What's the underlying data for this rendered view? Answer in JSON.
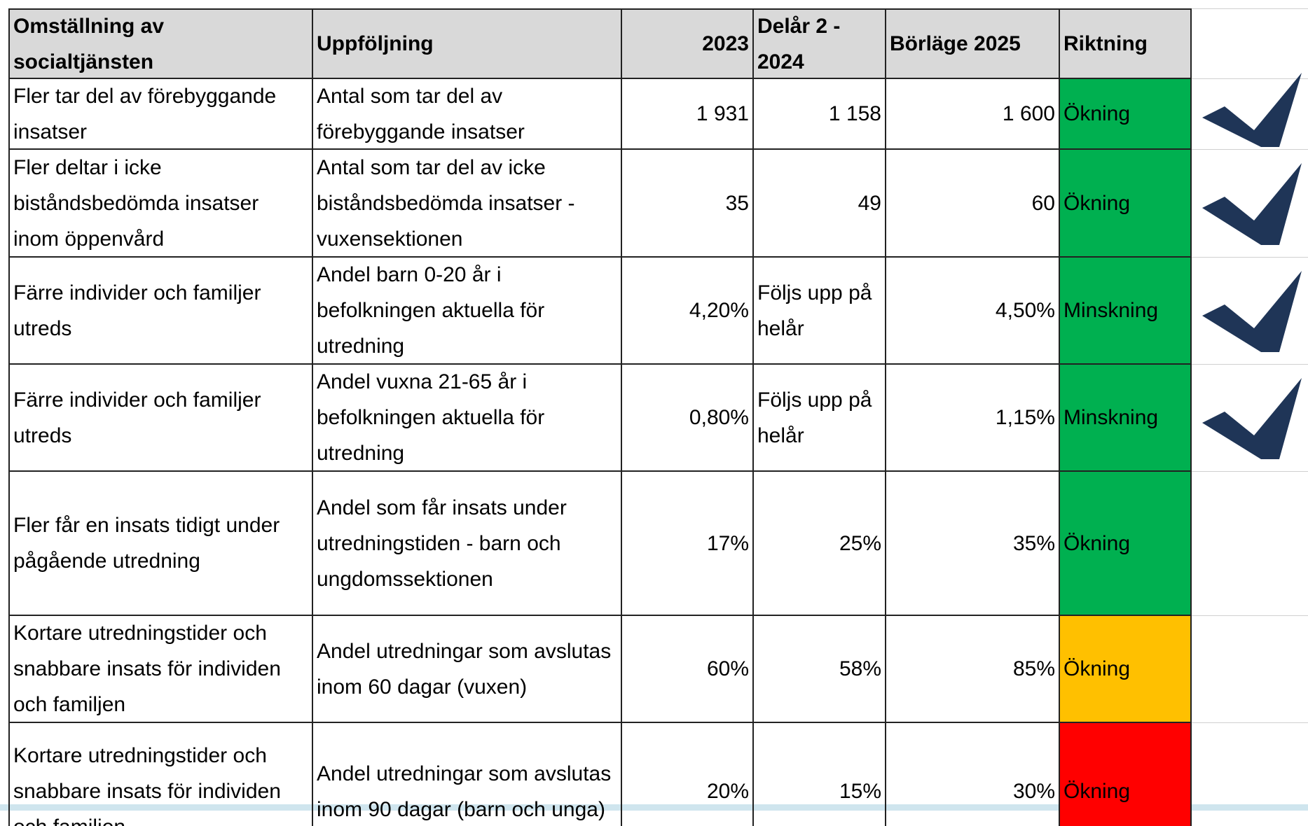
{
  "table": {
    "header": [
      "Omställning av socialtjänsten",
      "Uppföljning",
      "2023",
      "Delår 2 - 2024",
      "Börläge 2025",
      "Riktning"
    ],
    "rows": [
      [
        "Fler tar del av förebyggande insatser",
        "Antal som tar del av förebyggande insatser",
        "1 931",
        "1 158",
        "1 600",
        "Ökning"
      ],
      [
        "Fler deltar i icke biståndsbedömda insatser inom öppenvård",
        "Antal som tar del av icke biståndsbedömda insatser - vuxensektionen",
        "35",
        "49",
        "60",
        "Ökning"
      ],
      [
        "Färre individer och familjer utreds",
        "Andel barn 0-20 år i befolkningen aktuella för utredning",
        "4,20%",
        "Följs upp på helår",
        "4,50%",
        "Minskning"
      ],
      [
        "Färre individer och familjer utreds",
        "Andel vuxna 21-65 år i befolkningen aktuella för utredning",
        "0,80%",
        "Följs upp på helår",
        "1,15%",
        "Minskning"
      ],
      [
        "Fler får en insats tidigt under pågående utredning",
        "Andel som får insats under utredningstiden - barn och ungdomssektionen",
        "17%",
        "25%",
        "35%",
        "Ökning"
      ],
      [
        "Kortare utredningstider och snabbare insats för individen och familjen",
        "Andel utredningar som avslutas inom 60 dagar (vuxen)",
        "60%",
        "58%",
        "85%",
        "Ökning"
      ],
      [
        "Kortare utredningstider och snabbare insats för individen och familjen",
        "Andel utredningar som avslutas inom 90 dagar (barn och unga)",
        "20%",
        "15%",
        "30%",
        "Ökning"
      ]
    ],
    "status_colors": [
      "#00b050",
      "#00b050",
      "#00b050",
      "#00b050",
      "#00b050",
      "#ffc000",
      "#ff0000"
    ]
  }
}
